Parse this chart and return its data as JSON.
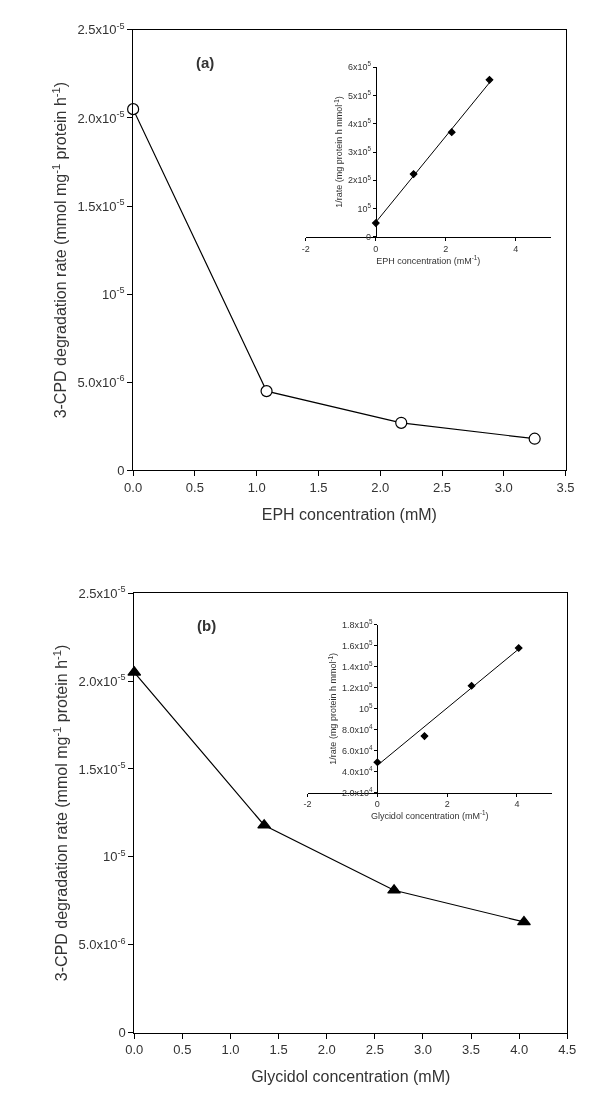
{
  "chart_data": [
    {
      "type": "line",
      "xlabel": "EPH concentration (mM)",
      "ylabel": "3-CPD degradation rate (mmol mg$^{-1}$ protein h$^{-1}$)",
      "annotations": [
        "(a)"
      ],
      "marker": "circle",
      "x": [
        0,
        1.08,
        2.17,
        3.25
      ],
      "series": [
        {
          "color": "#000000",
          "values": [
            2.05e-05,
            4.5e-06,
            2.7e-06,
            1.8e-06
          ]
        }
      ],
      "xlim": [
        0,
        3.5
      ],
      "xticks": [
        {
          "value": 0,
          "label": "0.0"
        },
        0.5,
        {
          "value": 1,
          "label": "1.0"
        },
        1.5,
        {
          "value": 2,
          "label": "2.0"
        },
        2.5,
        {
          "value": 3,
          "label": "3.0"
        },
        3.5
      ],
      "ylim": [
        0,
        2.5e-05
      ],
      "yticks": [
        {
          "value": 0,
          "label": "0"
        },
        {
          "value": 5e-06,
          "label": "5.0x10$^{-6}$"
        },
        {
          "value": 1e-05,
          "label": "10$^{-5}$"
        },
        {
          "value": 1.5e-05,
          "label": "1.5x10$^{-5}$"
        },
        {
          "value": 2e-05,
          "label": "2.0x10$^{-5}$"
        },
        {
          "value": 2.5e-05,
          "label": "2.5x10$^{-5}$"
        }
      ]
    },
    {
      "type": "scatter",
      "xlabel": "EPH concentration (mM$^{-1}$)",
      "ylabel": "1/rate (mg protein h mmol$^{-1}$)",
      "marker": "diamond",
      "series": [
        {
          "color": "#000000",
          "x": [
            0,
            1.08,
            2.17,
            3.25
          ],
          "values": [
            49000,
            222000,
            370000,
            555000
          ]
        },
        {
          "type": "line",
          "marker": "none",
          "color": "#000000",
          "x": [
            0,
            3.25
          ],
          "values": [
            52000,
            545000
          ]
        }
      ],
      "xlim": [
        -2,
        5
      ],
      "xticks": [
        {
          "value": -2,
          "label": "-2"
        },
        0,
        2,
        4
      ],
      "ylim": [
        0,
        600000
      ],
      "yticks": [
        {
          "value": 0,
          "label": "0"
        },
        {
          "value": 100000,
          "label": "10$^{5}$"
        },
        {
          "value": 200000,
          "label": "2x10$^{5}$"
        },
        {
          "value": 300000,
          "label": "3x10$^{5}$"
        },
        {
          "value": 400000,
          "label": "4x10$^{5}$"
        },
        {
          "value": 500000,
          "label": "5x10$^{5}$"
        },
        {
          "value": 600000,
          "label": "6x10$^{5}$"
        }
      ]
    },
    {
      "type": "line",
      "xlabel": "Glycidol concentration (mM)",
      "ylabel": "3-CPD degradation rate (mmol mg$^{-1}$ protein h$^{-1}$)",
      "annotations": [
        "(b)"
      ],
      "marker": "triangle",
      "x": [
        0,
        1.35,
        2.7,
        4.05
      ],
      "series": [
        {
          "color": "#000000",
          "values": [
            2.05e-05,
            1.18e-05,
            8.1e-06,
            6.3e-06
          ]
        }
      ],
      "xlim": [
        0,
        4.5
      ],
      "xticks": [
        {
          "value": 0,
          "label": "0.0"
        },
        0.5,
        {
          "value": 1,
          "label": "1.0"
        },
        1.5,
        {
          "value": 2,
          "label": "2.0"
        },
        2.5,
        {
          "value": 3,
          "label": "3.0"
        },
        3.5,
        {
          "value": 4,
          "label": "4.0"
        },
        4.5
      ],
      "ylim": [
        0,
        2.5e-05
      ],
      "yticks": [
        {
          "value": 0,
          "label": "0"
        },
        {
          "value": 5e-06,
          "label": "5.0x10$^{-6}$"
        },
        {
          "value": 1e-05,
          "label": "10$^{-5}$"
        },
        {
          "value": 1.5e-05,
          "label": "1.5x10$^{-5}$"
        },
        {
          "value": 2e-05,
          "label": "2.0x10$^{-5}$"
        },
        {
          "value": 2.5e-05,
          "label": "2.5x10$^{-5}$"
        }
      ]
    },
    {
      "type": "scatter",
      "xlabel": "Glycidol concentration (mM$^{-1}$)",
      "ylabel": "1/rate (mg protein h mmol$^{-1}$)",
      "marker": "diamond",
      "series": [
        {
          "color": "#000000",
          "x": [
            0,
            1.35,
            2.7,
            4.05
          ],
          "values": [
            49000,
            74000,
            122000,
            158000
          ]
        },
        {
          "type": "line",
          "marker": "none",
          "color": "#000000",
          "x": [
            0,
            4.05
          ],
          "values": [
            46000,
            157000
          ]
        }
      ],
      "xlim": [
        -2,
        5
      ],
      "xticks": [
        {
          "value": -2,
          "label": "-2"
        },
        0,
        2,
        4
      ],
      "ylim": [
        20000,
        180000
      ],
      "yticks": [
        {
          "value": 20000,
          "label": "2.0x10$^{4}$"
        },
        {
          "value": 40000,
          "label": "4.0x10$^{4}$"
        },
        {
          "value": 60000,
          "label": "6.0x10$^{4}$"
        },
        {
          "value": 80000,
          "label": "8.0x10$^{4}$"
        },
        {
          "value": 100000,
          "label": "10$^{5}$"
        },
        {
          "value": 120000,
          "label": "1.2x10$^{5}$"
        },
        {
          "value": 140000,
          "label": "1.4x10$^{5}$"
        },
        {
          "value": 160000,
          "label": "1.6x10$^{5}$"
        },
        {
          "value": 180000,
          "label": "1.8x10$^{5}$"
        }
      ]
    }
  ]
}
